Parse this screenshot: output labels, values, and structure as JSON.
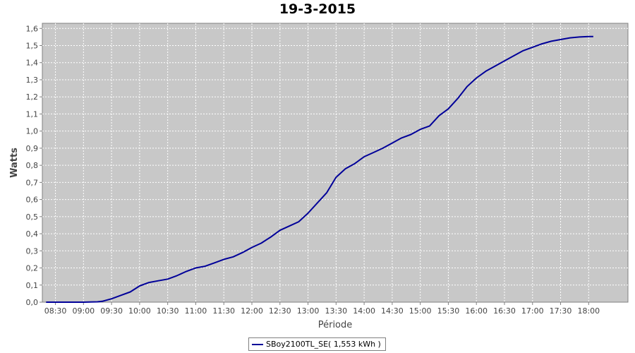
{
  "chart_data": {
    "type": "line",
    "title": "19-3-2015",
    "xlabel": "Période",
    "ylabel": "Watts",
    "x_ticks": [
      "08:30",
      "09:00",
      "09:30",
      "10:00",
      "10:30",
      "11:00",
      "11:30",
      "12:00",
      "12:30",
      "13:00",
      "13:30",
      "14:00",
      "14:30",
      "15:00",
      "15:30",
      "16:00",
      "16:30",
      "17:00",
      "17:30",
      "18:00"
    ],
    "y_ticks": [
      "0,0",
      "0,1",
      "0,2",
      "0,3",
      "0,4",
      "0,5",
      "0,6",
      "0,7",
      "0,8",
      "0,9",
      "1,0",
      "1,1",
      "1,2",
      "1,3",
      "1,4",
      "1,5",
      "1,6"
    ],
    "xlim": [
      "08:16",
      "18:42"
    ],
    "ylim": [
      0,
      1.63
    ],
    "grid": true,
    "legend_position": "bottom-center",
    "series": [
      {
        "name": "SBoy2100TL_SE( 1,553 kWh )",
        "color": "#000099",
        "points": [
          [
            "08:20",
            0.0
          ],
          [
            "08:40",
            0.0
          ],
          [
            "09:00",
            0.0
          ],
          [
            "09:15",
            0.002
          ],
          [
            "09:20",
            0.005
          ],
          [
            "09:30",
            0.02
          ],
          [
            "09:40",
            0.04
          ],
          [
            "09:50",
            0.06
          ],
          [
            "10:00",
            0.095
          ],
          [
            "10:10",
            0.115
          ],
          [
            "10:20",
            0.125
          ],
          [
            "10:30",
            0.135
          ],
          [
            "10:40",
            0.155
          ],
          [
            "10:50",
            0.18
          ],
          [
            "11:00",
            0.2
          ],
          [
            "11:10",
            0.21
          ],
          [
            "11:20",
            0.23
          ],
          [
            "11:30",
            0.25
          ],
          [
            "11:40",
            0.265
          ],
          [
            "11:50",
            0.29
          ],
          [
            "12:00",
            0.32
          ],
          [
            "12:10",
            0.345
          ],
          [
            "12:20",
            0.38
          ],
          [
            "12:30",
            0.42
          ],
          [
            "12:40",
            0.445
          ],
          [
            "12:50",
            0.47
          ],
          [
            "13:00",
            0.52
          ],
          [
            "13:10",
            0.58
          ],
          [
            "13:20",
            0.64
          ],
          [
            "13:30",
            0.73
          ],
          [
            "13:40",
            0.78
          ],
          [
            "13:50",
            0.81
          ],
          [
            "14:00",
            0.85
          ],
          [
            "14:10",
            0.875
          ],
          [
            "14:20",
            0.9
          ],
          [
            "14:30",
            0.93
          ],
          [
            "14:40",
            0.96
          ],
          [
            "14:50",
            0.98
          ],
          [
            "15:00",
            1.01
          ],
          [
            "15:10",
            1.03
          ],
          [
            "15:20",
            1.09
          ],
          [
            "15:30",
            1.13
          ],
          [
            "15:40",
            1.19
          ],
          [
            "15:50",
            1.26
          ],
          [
            "16:00",
            1.31
          ],
          [
            "16:10",
            1.35
          ],
          [
            "16:20",
            1.38
          ],
          [
            "16:30",
            1.41
          ],
          [
            "16:40",
            1.44
          ],
          [
            "16:50",
            1.47
          ],
          [
            "17:00",
            1.49
          ],
          [
            "17:10",
            1.51
          ],
          [
            "17:20",
            1.525
          ],
          [
            "17:30",
            1.535
          ],
          [
            "17:40",
            1.545
          ],
          [
            "17:50",
            1.55
          ],
          [
            "18:00",
            1.553
          ],
          [
            "18:05",
            1.553
          ]
        ]
      }
    ]
  }
}
